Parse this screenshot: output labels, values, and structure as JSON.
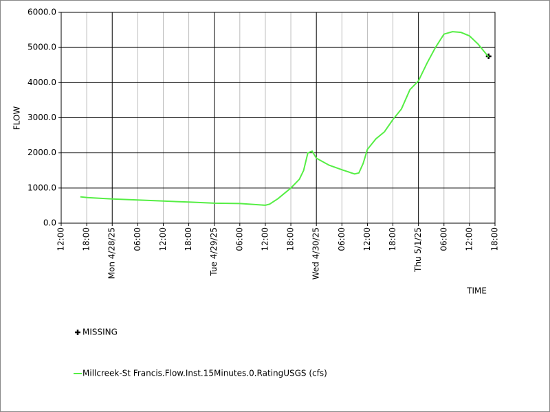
{
  "chart_data": {
    "type": "line",
    "x_label": "TIME",
    "y_label": "FLOW",
    "xlim": [
      "2025-04-27 12:00",
      "2025-05-01 18:00"
    ],
    "ylim": [
      0,
      6000
    ],
    "yticks": [
      {
        "value": 0,
        "label": "0.0"
      },
      {
        "value": 1000,
        "label": "1000.0"
      },
      {
        "value": 2000,
        "label": "2000.0"
      },
      {
        "value": 3000,
        "label": "3000.0"
      },
      {
        "value": 4000,
        "label": "4000.0"
      },
      {
        "value": 5000,
        "label": "5000.0"
      },
      {
        "value": 6000,
        "label": "6000.0"
      }
    ],
    "xticks": [
      {
        "value": "2025-04-27 12:00",
        "label": "12:00"
      },
      {
        "value": "2025-04-27 18:00",
        "label": "18:00"
      },
      {
        "value": "2025-04-28 00:00",
        "label": "Mon 4/28/25"
      },
      {
        "value": "2025-04-28 06:00",
        "label": "06:00"
      },
      {
        "value": "2025-04-28 12:00",
        "label": "12:00"
      },
      {
        "value": "2025-04-28 18:00",
        "label": "18:00"
      },
      {
        "value": "2025-04-29 00:00",
        "label": "Tue 4/29/25"
      },
      {
        "value": "2025-04-29 06:00",
        "label": "06:00"
      },
      {
        "value": "2025-04-29 12:00",
        "label": "12:00"
      },
      {
        "value": "2025-04-29 18:00",
        "label": "18:00"
      },
      {
        "value": "2025-04-30 00:00",
        "label": "Wed 4/30/25"
      },
      {
        "value": "2025-04-30 06:00",
        "label": "06:00"
      },
      {
        "value": "2025-04-30 12:00",
        "label": "12:00"
      },
      {
        "value": "2025-04-30 18:00",
        "label": "18:00"
      },
      {
        "value": "2025-05-01 00:00",
        "label": "Thu 5/1/25"
      },
      {
        "value": "2025-05-01 06:00",
        "label": "06:00"
      },
      {
        "value": "2025-05-01 12:00",
        "label": "12:00"
      },
      {
        "value": "2025-05-01 18:00",
        "label": "18:00"
      }
    ],
    "grid": true,
    "series": [
      {
        "name": "MISSING",
        "color": "#000000",
        "marker": "plus",
        "x": [
          "2025-05-01 16:30"
        ],
        "values": [
          4750
        ]
      },
      {
        "name": "Millcreek-St Francis.Flow.Inst.15Minutes.0.RatingUSGS (cfs)",
        "color": "#55ee44",
        "marker": "line",
        "x": [
          "2025-04-27 16:30",
          "2025-04-27 18:00",
          "2025-04-28 00:00",
          "2025-04-28 06:00",
          "2025-04-28 12:00",
          "2025-04-28 18:00",
          "2025-04-29 00:00",
          "2025-04-29 06:00",
          "2025-04-29 12:00",
          "2025-04-29 13:00",
          "2025-04-29 15:00",
          "2025-04-29 18:00",
          "2025-04-29 20:00",
          "2025-04-29 21:00",
          "2025-04-29 22:00",
          "2025-04-29 23:00",
          "2025-04-30 00:00",
          "2025-04-30 03:00",
          "2025-04-30 06:00",
          "2025-04-30 09:00",
          "2025-04-30 10:00",
          "2025-04-30 11:00",
          "2025-04-30 12:00",
          "2025-04-30 14:00",
          "2025-04-30 16:00",
          "2025-04-30 18:00",
          "2025-04-30 20:00",
          "2025-04-30 22:00",
          "2025-05-01 00:00",
          "2025-05-01 02:00",
          "2025-05-01 04:00",
          "2025-05-01 06:00",
          "2025-05-01 08:00",
          "2025-05-01 10:00",
          "2025-05-01 12:00",
          "2025-05-01 14:00",
          "2025-05-01 16:30"
        ],
        "values": [
          750,
          730,
          690,
          660,
          630,
          600,
          570,
          560,
          510,
          540,
          700,
          1000,
          1250,
          1500,
          2000,
          2050,
          1850,
          1650,
          1520,
          1400,
          1430,
          1700,
          2100,
          2400,
          2600,
          2950,
          3250,
          3800,
          4050,
          4550,
          5000,
          5380,
          5450,
          5430,
          5330,
          5100,
          4730
        ]
      }
    ]
  }
}
